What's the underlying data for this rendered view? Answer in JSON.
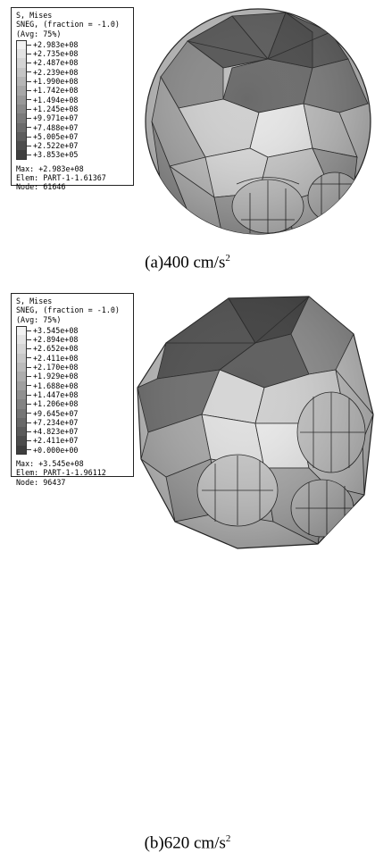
{
  "panels": [
    {
      "legend": {
        "title": "S, Mises",
        "sneg": "SNEG, (fraction = -1.0)",
        "avg": "(Avg: 75%)",
        "values": [
          "+2.983e+08",
          "+2.735e+08",
          "+2.487e+08",
          "+2.239e+08",
          "+1.990e+08",
          "+1.742e+08",
          "+1.494e+08",
          "+1.245e+08",
          "+9.971e+07",
          "+7.488e+07",
          "+5.005e+07",
          "+2.522e+07",
          "+3.853e+05"
        ],
        "max": "Max: +2.983e+08",
        "elem": "Elem: PART-1-1.61367",
        "node": "Node: 61646"
      },
      "caption": {
        "prefix": "(a)400 cm/s",
        "sup": "2"
      }
    },
    {
      "legend": {
        "title": "S, Mises",
        "sneg": "SNEG, (fraction = -1.0)",
        "avg": "(Avg: 75%)",
        "values": [
          "+3.545e+08",
          "+2.894e+08",
          "+2.652e+08",
          "+2.411e+08",
          "+2.170e+08",
          "+1.929e+08",
          "+1.688e+08",
          "+1.447e+08",
          "+1.206e+08",
          "+9.645e+07",
          "+7.234e+07",
          "+4.823e+07",
          "+2.411e+07",
          "+0.000e+00"
        ],
        "max": "Max: +3.545e+08",
        "elem": "Elem: PART-1-1.96112",
        "node": "Node: 96437"
      },
      "caption": {
        "prefix": "(b)620 cm/s",
        "sup": "2"
      }
    }
  ],
  "colors": {
    "dark": "#3a3a3a",
    "light": "#f2f2f2",
    "mesh_line": "#222222"
  }
}
